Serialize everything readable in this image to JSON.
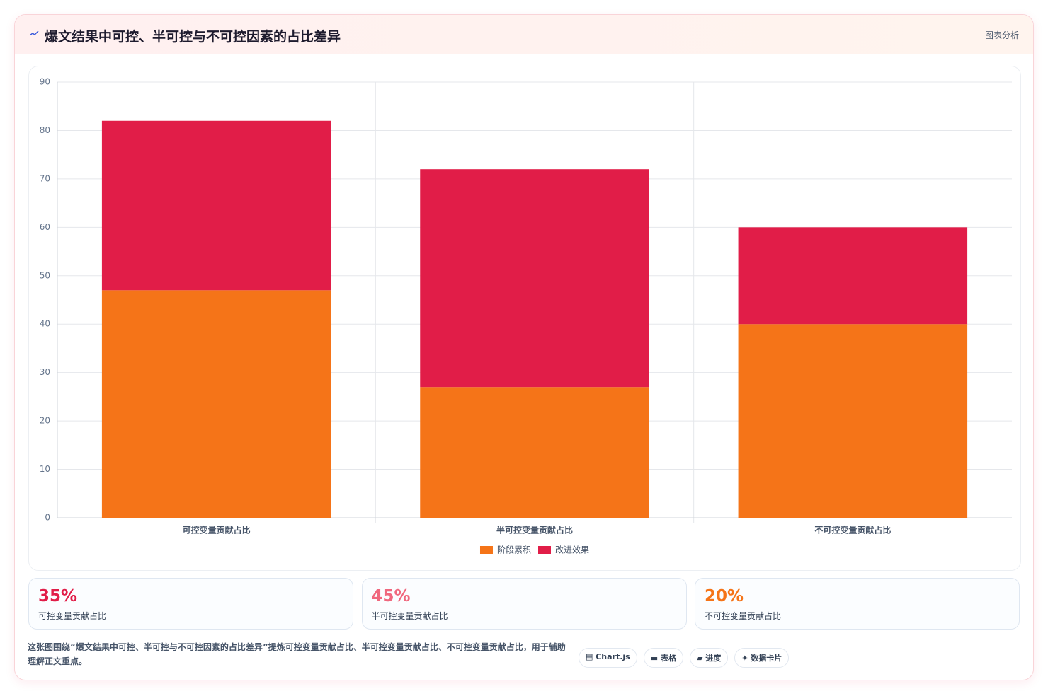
{
  "header": {
    "title": "爆文结果中可控、半可控与不可控因素的占比差异",
    "badge": "图表分析"
  },
  "chart_data": {
    "type": "bar",
    "stacked": true,
    "categories": [
      "可控变量贡献占比",
      "半可控变量贡献占比",
      "不可控变量贡献占比"
    ],
    "series": [
      {
        "name": "阶段累积",
        "color": "#f57418",
        "values": [
          47,
          27,
          40
        ]
      },
      {
        "name": "改进效果",
        "color": "#e11d48",
        "values": [
          35,
          45,
          20
        ]
      }
    ],
    "ylim": [
      0,
      90
    ],
    "yticks": [
      0,
      10,
      20,
      30,
      40,
      50,
      60,
      70,
      80,
      90
    ],
    "grid": true,
    "legend": "bottom"
  },
  "stats": [
    {
      "value": "35%",
      "label": "可控变量贡献占比",
      "color": "#e11d48"
    },
    {
      "value": "45%",
      "label": "半可控变量贡献占比",
      "color": "#f0687e"
    },
    {
      "value": "20%",
      "label": "不可控变量贡献占比",
      "color": "#f57418"
    }
  ],
  "footer": {
    "text": "这张图围绕“爆文结果中可控、半可控与不可控因素的占比差异”提炼可控变量贡献占比、半可控变量贡献占比、不可控变量贡献占比，用于辅助理解正文重点。",
    "tags": [
      "▤ Chart.js",
      "▬ 表格",
      "▰ 进度",
      "✦ 数据卡片"
    ]
  }
}
